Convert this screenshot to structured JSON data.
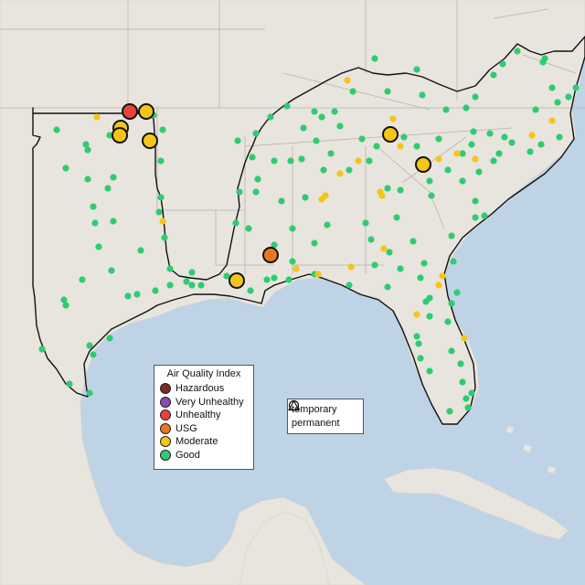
{
  "colors": {
    "water": "#bfd3e6",
    "land": "#e8e4de",
    "hazardous": "#7e2a26",
    "very_unhealthy": "#8d4bb0",
    "unhealthy": "#e8423a",
    "usg": "#e8781e",
    "moderate": "#f5c518",
    "good": "#2ecc71"
  },
  "aqi_legend": {
    "title": "Air Quality Index",
    "items": [
      {
        "label": "Hazardous",
        "color": "#7e2a26"
      },
      {
        "label": "Very Unhealthy",
        "color": "#8d4bb0"
      },
      {
        "label": "Unhealthy",
        "color": "#e8423a"
      },
      {
        "label": "USG",
        "color": "#e8781e"
      },
      {
        "label": "Moderate",
        "color": "#f5c518"
      },
      {
        "label": "Good",
        "color": "#2ecc71"
      }
    ]
  },
  "shape_legend": {
    "items": [
      {
        "label": "temporary",
        "shape": "circle-icon"
      },
      {
        "label": "permanent",
        "shape": "triangle-icon"
      }
    ]
  }
}
